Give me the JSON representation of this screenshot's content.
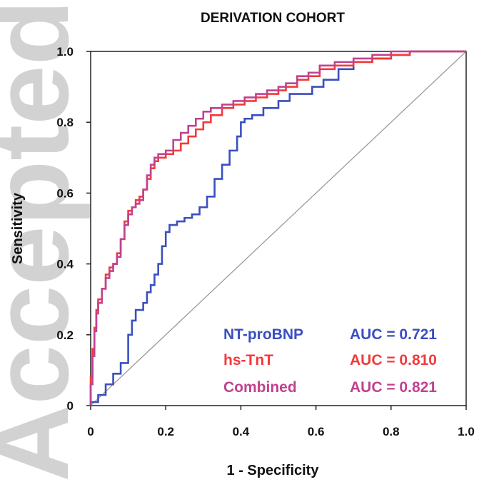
{
  "watermark": "Accepted Article",
  "chart_data": {
    "type": "line",
    "title": "DERIVATION COHORT",
    "xlabel": "1 - Specificity",
    "ylabel": "Sensitivity",
    "xlim": [
      0,
      1
    ],
    "ylim": [
      0,
      1
    ],
    "x_ticks": [
      "0",
      "0.2",
      "0.4",
      "0.6",
      "0.8",
      "1.0"
    ],
    "y_ticks": [
      "0",
      "0.2",
      "0.4",
      "0.6",
      "0.8",
      "1.0"
    ],
    "grid": false,
    "legend_position": "bottom-right",
    "reference_line": {
      "from": [
        0,
        0
      ],
      "to": [
        1,
        1
      ],
      "color": "#9a9a9a"
    },
    "series": [
      {
        "name": "NT-proBNP",
        "auc_label": "AUC = 0.721",
        "color": "#3a4fbf",
        "points": [
          [
            0,
            0
          ],
          [
            0.02,
            0.01
          ],
          [
            0.04,
            0.03
          ],
          [
            0.06,
            0.06
          ],
          [
            0.08,
            0.09
          ],
          [
            0.1,
            0.12
          ],
          [
            0.11,
            0.2
          ],
          [
            0.12,
            0.24
          ],
          [
            0.14,
            0.27
          ],
          [
            0.15,
            0.29
          ],
          [
            0.16,
            0.32
          ],
          [
            0.17,
            0.34
          ],
          [
            0.18,
            0.37
          ],
          [
            0.19,
            0.4
          ],
          [
            0.2,
            0.45
          ],
          [
            0.21,
            0.49
          ],
          [
            0.23,
            0.51
          ],
          [
            0.25,
            0.52
          ],
          [
            0.27,
            0.53
          ],
          [
            0.29,
            0.54
          ],
          [
            0.31,
            0.56
          ],
          [
            0.33,
            0.59
          ],
          [
            0.35,
            0.64
          ],
          [
            0.37,
            0.68
          ],
          [
            0.39,
            0.72
          ],
          [
            0.4,
            0.76
          ],
          [
            0.41,
            0.8
          ],
          [
            0.43,
            0.81
          ],
          [
            0.46,
            0.82
          ],
          [
            0.5,
            0.84
          ],
          [
            0.53,
            0.86
          ],
          [
            0.56,
            0.88
          ],
          [
            0.59,
            0.88
          ],
          [
            0.62,
            0.9
          ],
          [
            0.66,
            0.92
          ],
          [
            0.7,
            0.95
          ],
          [
            0.75,
            0.97
          ],
          [
            0.8,
            0.98
          ],
          [
            0.85,
            0.99
          ],
          [
            0.9,
            1.0
          ],
          [
            1.0,
            1.0
          ]
        ]
      },
      {
        "name": "hs-TnT",
        "auc_label": "AUC = 0.810",
        "color": "#f23a3a",
        "points": [
          [
            0,
            0
          ],
          [
            0.005,
            0.08
          ],
          [
            0.01,
            0.16
          ],
          [
            0.015,
            0.22
          ],
          [
            0.02,
            0.27
          ],
          [
            0.03,
            0.3
          ],
          [
            0.04,
            0.33
          ],
          [
            0.05,
            0.37
          ],
          [
            0.06,
            0.39
          ],
          [
            0.07,
            0.4
          ],
          [
            0.08,
            0.43
          ],
          [
            0.09,
            0.47
          ],
          [
            0.1,
            0.52
          ],
          [
            0.11,
            0.55
          ],
          [
            0.12,
            0.56
          ],
          [
            0.13,
            0.58
          ],
          [
            0.14,
            0.59
          ],
          [
            0.15,
            0.61
          ],
          [
            0.16,
            0.64
          ],
          [
            0.17,
            0.67
          ],
          [
            0.18,
            0.69
          ],
          [
            0.2,
            0.7
          ],
          [
            0.22,
            0.71
          ],
          [
            0.24,
            0.72
          ],
          [
            0.26,
            0.74
          ],
          [
            0.28,
            0.76
          ],
          [
            0.3,
            0.78
          ],
          [
            0.32,
            0.8
          ],
          [
            0.35,
            0.82
          ],
          [
            0.38,
            0.84
          ],
          [
            0.41,
            0.85
          ],
          [
            0.44,
            0.86
          ],
          [
            0.47,
            0.87
          ],
          [
            0.5,
            0.88
          ],
          [
            0.52,
            0.89
          ],
          [
            0.55,
            0.9
          ],
          [
            0.58,
            0.92
          ],
          [
            0.61,
            0.93
          ],
          [
            0.65,
            0.95
          ],
          [
            0.7,
            0.96
          ],
          [
            0.75,
            0.97
          ],
          [
            0.8,
            0.98
          ],
          [
            0.85,
            0.99
          ],
          [
            0.9,
            1.0
          ],
          [
            1.0,
            1.0
          ]
        ]
      },
      {
        "name": "Combined",
        "auc_label": "AUC = 0.821",
        "color": "#c0428f",
        "points": [
          [
            0,
            0
          ],
          [
            0.005,
            0.06
          ],
          [
            0.01,
            0.14
          ],
          [
            0.015,
            0.21
          ],
          [
            0.02,
            0.26
          ],
          [
            0.03,
            0.29
          ],
          [
            0.04,
            0.33
          ],
          [
            0.05,
            0.36
          ],
          [
            0.06,
            0.38
          ],
          [
            0.07,
            0.4
          ],
          [
            0.08,
            0.42
          ],
          [
            0.09,
            0.47
          ],
          [
            0.1,
            0.51
          ],
          [
            0.11,
            0.54
          ],
          [
            0.12,
            0.56
          ],
          [
            0.13,
            0.57
          ],
          [
            0.14,
            0.58
          ],
          [
            0.15,
            0.61
          ],
          [
            0.16,
            0.65
          ],
          [
            0.17,
            0.68
          ],
          [
            0.18,
            0.7
          ],
          [
            0.2,
            0.71
          ],
          [
            0.22,
            0.72
          ],
          [
            0.24,
            0.75
          ],
          [
            0.26,
            0.77
          ],
          [
            0.28,
            0.79
          ],
          [
            0.3,
            0.81
          ],
          [
            0.32,
            0.83
          ],
          [
            0.35,
            0.84
          ],
          [
            0.38,
            0.85
          ],
          [
            0.41,
            0.86
          ],
          [
            0.44,
            0.87
          ],
          [
            0.47,
            0.88
          ],
          [
            0.5,
            0.89
          ],
          [
            0.52,
            0.9
          ],
          [
            0.55,
            0.91
          ],
          [
            0.58,
            0.93
          ],
          [
            0.61,
            0.94
          ],
          [
            0.65,
            0.96
          ],
          [
            0.7,
            0.97
          ],
          [
            0.75,
            0.98
          ],
          [
            0.8,
            0.99
          ],
          [
            0.85,
            1.0
          ],
          [
            1.0,
            1.0
          ]
        ]
      }
    ]
  }
}
